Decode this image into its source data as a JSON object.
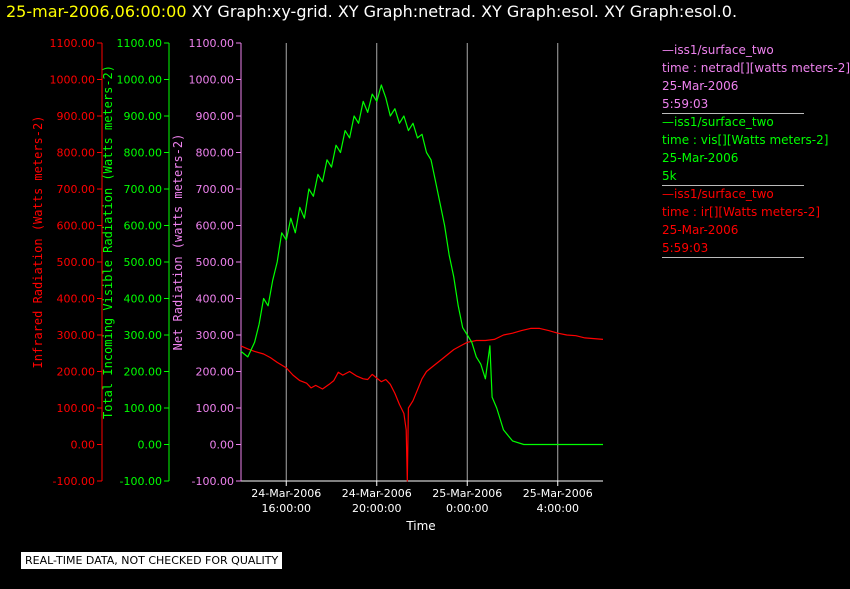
{
  "header": {
    "timestamp": "25-mar-2006,06:00:00",
    "graphs": "XY Graph:xy-grid.  XY Graph:netrad.  XY Graph:esol.  XY Graph:esol.0."
  },
  "legend": [
    {
      "name": "—iss1/surface_two",
      "line2": "time : netrad[][watts meters-2]",
      "line3": "25-Mar-2006",
      "line4": "5:59:03",
      "color": "#ee82ee"
    },
    {
      "name": "—iss1/surface_two",
      "line2": "time : vis[][Watts meters-2]",
      "line3": "25-Mar-2006",
      "line4": "5k",
      "color": "#00ff00"
    },
    {
      "name": "—iss1/surface_two",
      "line2": "time : ir[][Watts meters-2]",
      "line3": "25-Mar-2006",
      "line4": "5:59:03",
      "color": "#ff0000"
    }
  ],
  "disclaimer": "REAL-TIME DATA, NOT CHECKED FOR QUALITY",
  "chart_data": {
    "type": "line",
    "xlabel": "Time",
    "x_range_hours": [
      14.0,
      30.0
    ],
    "x_ticks": [
      {
        "hour": 16,
        "line1": "24-Mar-2006",
        "line2": "16:00:00"
      },
      {
        "hour": 20,
        "line1": "24-Mar-2006",
        "line2": "20:00:00"
      },
      {
        "hour": 24,
        "line1": "25-Mar-2006",
        "line2": "0:00:00"
      },
      {
        "hour": 28,
        "line1": "25-Mar-2006",
        "line2": "4:00:00"
      }
    ],
    "y_ticks": [
      -100,
      0,
      100,
      200,
      300,
      400,
      500,
      600,
      700,
      800,
      900,
      1000,
      1100
    ],
    "ylim": [
      -100,
      1100
    ],
    "y_axes": [
      {
        "label": "Infrared Radiation (Watts meters-2)",
        "color": "#ff0000",
        "tick_labels": [
          "-100.00",
          "0.00",
          "100.00",
          "200.00",
          "300.00",
          "400.00",
          "500.00",
          "600.00",
          "700.00",
          "800.00",
          "900.00",
          "1000.00",
          "1100.00"
        ]
      },
      {
        "label": "Total Incoming Visible Radiation (Watts meters-2)",
        "color": "#00ff00",
        "tick_labels": [
          "-100.00",
          "0.00",
          "100.00",
          "200.00",
          "300.00",
          "400.00",
          "500.00",
          "600.00",
          "700.00",
          "800.00",
          "900.00",
          "1000.00",
          "1100.00"
        ]
      },
      {
        "label": "Net Radiation (watts meters-2)",
        "color": "#ee82ee",
        "tick_labels": [
          "-100.00",
          "0.00",
          "100.00",
          "200.00",
          "300.00",
          "400.00",
          "500.00",
          "600.00",
          "700.00",
          "800.00",
          "900.00",
          "1000.00",
          "1100.00"
        ]
      }
    ],
    "series": [
      {
        "name": "ir",
        "color": "#ff0000",
        "points": [
          [
            14.0,
            270
          ],
          [
            14.3,
            262
          ],
          [
            14.6,
            255
          ],
          [
            15.0,
            248
          ],
          [
            15.3,
            238
          ],
          [
            15.6,
            225
          ],
          [
            16.0,
            210
          ],
          [
            16.3,
            190
          ],
          [
            16.6,
            175
          ],
          [
            16.9,
            168
          ],
          [
            17.1,
            155
          ],
          [
            17.3,
            162
          ],
          [
            17.6,
            152
          ],
          [
            17.9,
            165
          ],
          [
            18.1,
            175
          ],
          [
            18.3,
            198
          ],
          [
            18.5,
            190
          ],
          [
            18.8,
            200
          ],
          [
            19.1,
            188
          ],
          [
            19.4,
            180
          ],
          [
            19.6,
            178
          ],
          [
            19.8,
            192
          ],
          [
            20.0,
            182
          ],
          [
            20.2,
            172
          ],
          [
            20.4,
            178
          ],
          [
            20.6,
            165
          ],
          [
            20.8,
            140
          ],
          [
            21.0,
            110
          ],
          [
            21.2,
            85
          ],
          [
            21.3,
            40
          ],
          [
            21.35,
            -100
          ],
          [
            21.4,
            100
          ],
          [
            21.6,
            120
          ],
          [
            21.8,
            150
          ],
          [
            22.0,
            180
          ],
          [
            22.2,
            200
          ],
          [
            22.5,
            215
          ],
          [
            22.8,
            230
          ],
          [
            23.1,
            245
          ],
          [
            23.4,
            260
          ],
          [
            23.7,
            270
          ],
          [
            24.0,
            280
          ],
          [
            24.4,
            285
          ],
          [
            24.8,
            285
          ],
          [
            25.2,
            288
          ],
          [
            25.6,
            300
          ],
          [
            26.0,
            305
          ],
          [
            26.4,
            312
          ],
          [
            26.8,
            318
          ],
          [
            27.2,
            318
          ],
          [
            27.6,
            312
          ],
          [
            28.0,
            305
          ],
          [
            28.4,
            300
          ],
          [
            28.8,
            298
          ],
          [
            29.2,
            292
          ],
          [
            29.6,
            290
          ],
          [
            30.0,
            288
          ]
        ]
      },
      {
        "name": "vis",
        "color": "#00ff00",
        "points": [
          [
            14.0,
            255
          ],
          [
            14.3,
            240
          ],
          [
            14.6,
            280
          ],
          [
            14.8,
            330
          ],
          [
            15.0,
            400
          ],
          [
            15.2,
            380
          ],
          [
            15.4,
            450
          ],
          [
            15.6,
            500
          ],
          [
            15.8,
            580
          ],
          [
            16.0,
            560
          ],
          [
            16.2,
            620
          ],
          [
            16.4,
            580
          ],
          [
            16.6,
            650
          ],
          [
            16.8,
            620
          ],
          [
            17.0,
            700
          ],
          [
            17.2,
            680
          ],
          [
            17.4,
            740
          ],
          [
            17.6,
            720
          ],
          [
            17.8,
            780
          ],
          [
            18.0,
            760
          ],
          [
            18.2,
            820
          ],
          [
            18.4,
            800
          ],
          [
            18.6,
            860
          ],
          [
            18.8,
            840
          ],
          [
            19.0,
            900
          ],
          [
            19.2,
            880
          ],
          [
            19.4,
            940
          ],
          [
            19.6,
            910
          ],
          [
            19.8,
            960
          ],
          [
            20.0,
            940
          ],
          [
            20.2,
            985
          ],
          [
            20.4,
            950
          ],
          [
            20.6,
            900
          ],
          [
            20.8,
            920
          ],
          [
            21.0,
            880
          ],
          [
            21.2,
            900
          ],
          [
            21.4,
            860
          ],
          [
            21.6,
            880
          ],
          [
            21.8,
            840
          ],
          [
            22.0,
            850
          ],
          [
            22.2,
            800
          ],
          [
            22.4,
            780
          ],
          [
            22.6,
            720
          ],
          [
            22.8,
            660
          ],
          [
            23.0,
            600
          ],
          [
            23.2,
            520
          ],
          [
            23.4,
            460
          ],
          [
            23.6,
            380
          ],
          [
            23.8,
            320
          ],
          [
            24.0,
            300
          ],
          [
            24.2,
            280
          ],
          [
            24.4,
            240
          ],
          [
            24.6,
            220
          ],
          [
            24.8,
            180
          ],
          [
            25.0,
            270
          ],
          [
            25.1,
            130
          ],
          [
            25.3,
            100
          ],
          [
            25.6,
            40
          ],
          [
            26.0,
            10
          ],
          [
            26.5,
            0
          ],
          [
            27.0,
            0
          ],
          [
            28.0,
            0
          ],
          [
            29.0,
            0
          ],
          [
            30.0,
            0
          ]
        ]
      },
      {
        "name": "netrad",
        "color": "#ee82ee",
        "points": []
      }
    ]
  }
}
